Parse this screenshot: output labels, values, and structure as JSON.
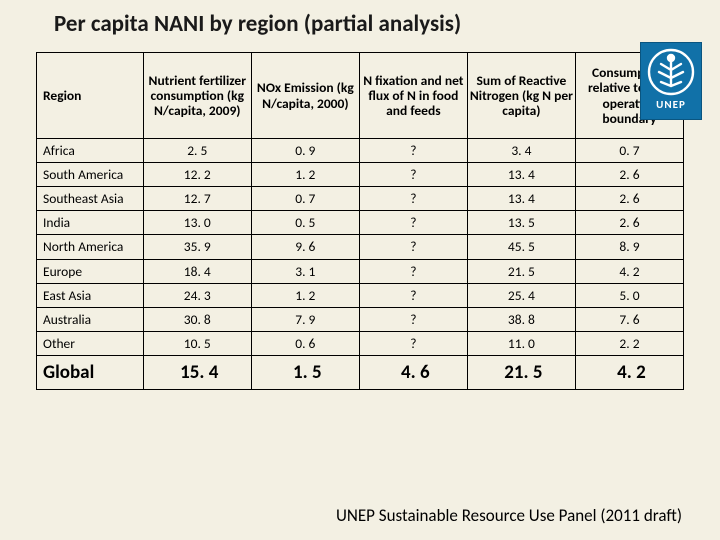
{
  "title": "Per capita NANI by region (partial analysis)",
  "logo": {
    "label": "UNEP"
  },
  "table": {
    "columns": [
      "Region",
      "Nutrient fertilizer consumption (kg N/capita, 2009)",
      "NOx Emission (kg N/capita, 2000)",
      "N fixation and net flux of N in food and feeds",
      "Sum of Reactive Nitrogen (kg  N  per capita)",
      "Consumption relative to safe operating boundary"
    ],
    "rows": [
      {
        "region": "Africa",
        "v": [
          "2. 5",
          "0. 9",
          "?",
          "3. 4",
          "0. 7"
        ]
      },
      {
        "region": "South America",
        "v": [
          "12. 2",
          "1. 2",
          "?",
          "13. 4",
          "2. 6"
        ]
      },
      {
        "region": "Southeast Asia",
        "v": [
          "12. 7",
          "0. 7",
          "?",
          "13. 4",
          "2. 6"
        ]
      },
      {
        "region": "India",
        "v": [
          "13. 0",
          "0. 5",
          "?",
          "13. 5",
          "2. 6"
        ]
      },
      {
        "region": "North America",
        "v": [
          "35. 9",
          "9. 6",
          "?",
          "45. 5",
          "8. 9"
        ]
      },
      {
        "region": "Europe",
        "v": [
          "18. 4",
          "3. 1",
          "?",
          "21. 5",
          "4. 2"
        ]
      },
      {
        "region": "East Asia",
        "v": [
          "24. 3",
          "1. 2",
          "?",
          "25. 4",
          "5. 0"
        ]
      },
      {
        "region": "Australia",
        "v": [
          "30. 8",
          "7. 9",
          "?",
          "38. 8",
          "7. 6"
        ]
      },
      {
        "region": "Other",
        "v": [
          "10. 5",
          "0. 6",
          "?",
          "11. 0",
          "2. 2"
        ]
      }
    ],
    "global": {
      "region": "Global",
      "v": [
        "15. 4",
        "1. 5",
        "4. 6",
        "21. 5",
        "4. 2"
      ]
    }
  },
  "footer": "UNEP Sustainable Resource Use Panel (2011 draft)",
  "colors": {
    "background": "#f3f0e3",
    "border": "#000000",
    "logo_bg": "#1171a8"
  }
}
